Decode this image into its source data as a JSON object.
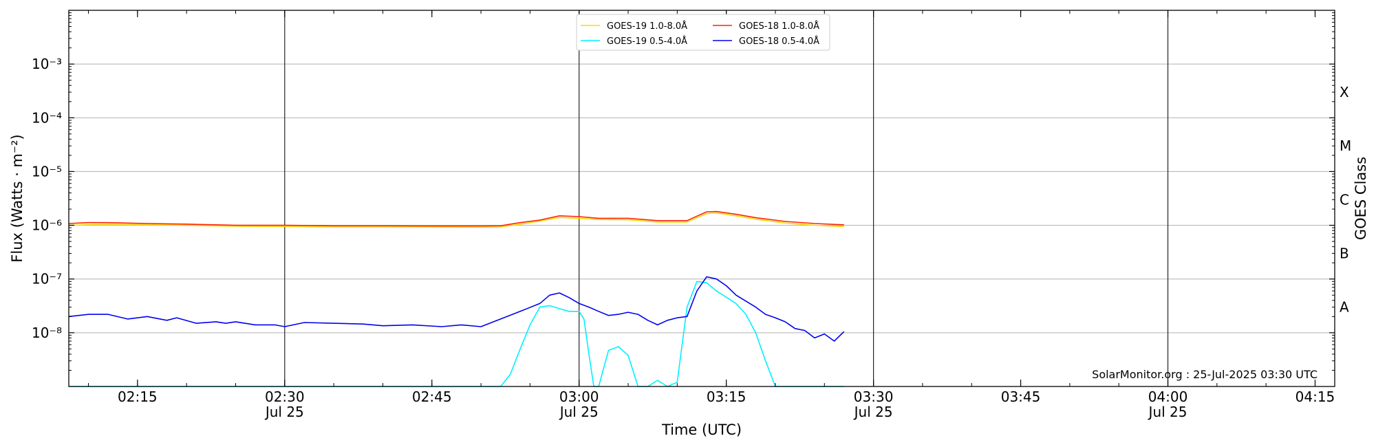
{
  "chart_data": {
    "type": "line",
    "xlabel": "Time (UTC)",
    "ylabel": "Flux (Watts · m⁻²)",
    "y2label": "GOES Class",
    "yscale": "log",
    "ylim": [
      1e-09,
      0.01
    ],
    "xlim": [
      "2025-07-25T02:08",
      "2025-07-25T04:17"
    ],
    "grid": "horizontal at decades, vertical at half-hours",
    "legend_placement": "top-center",
    "credit": "SolarMonitor.org : 25-Jul-2025 03:30 UTC",
    "y_ticks": [
      {
        "value": 1e-08,
        "label": "10⁻⁸"
      },
      {
        "value": 1e-07,
        "label": "10⁻⁷"
      },
      {
        "value": 1e-06,
        "label": "10⁻⁶"
      },
      {
        "value": 1e-05,
        "label": "10⁻⁵"
      },
      {
        "value": 0.0001,
        "label": "10⁻⁴"
      },
      {
        "value": 0.001,
        "label": "10⁻³"
      }
    ],
    "x_ticks": [
      {
        "time": "02:15",
        "label": "02:15",
        "sub": ""
      },
      {
        "time": "02:30",
        "label": "02:30",
        "sub": "Jul 25"
      },
      {
        "time": "02:45",
        "label": "02:45",
        "sub": ""
      },
      {
        "time": "03:00",
        "label": "03:00",
        "sub": "Jul 25"
      },
      {
        "time": "03:15",
        "label": "03:15",
        "sub": ""
      },
      {
        "time": "03:30",
        "label": "03:30",
        "sub": "Jul 25"
      },
      {
        "time": "03:45",
        "label": "03:45",
        "sub": ""
      },
      {
        "time": "04:00",
        "label": "04:00",
        "sub": "Jul 25"
      },
      {
        "time": "04:15",
        "label": "04:15",
        "sub": ""
      }
    ],
    "goes_classes": [
      {
        "label": "A",
        "at": 3e-08
      },
      {
        "label": "B",
        "at": 3e-07
      },
      {
        "label": "C",
        "at": 3e-06
      },
      {
        "label": "M",
        "at": 3e-05
      },
      {
        "label": "X",
        "at": 0.0003
      }
    ],
    "series": [
      {
        "name": "GOES-19 1.0-8.0Å",
        "color": "#ffd700",
        "points": [
          [
            "02:08",
            1e-06
          ],
          [
            "02:12",
            1.05e-06
          ],
          [
            "02:16",
            1.03e-06
          ],
          [
            "02:20",
            1e-06
          ],
          [
            "02:25",
            9.6e-07
          ],
          [
            "02:30",
            9.5e-07
          ],
          [
            "02:35",
            9.3e-07
          ],
          [
            "02:40",
            9.3e-07
          ],
          [
            "02:45",
            9.3e-07
          ],
          [
            "02:50",
            9.2e-07
          ],
          [
            "02:52",
            9.3e-07
          ],
          [
            "02:54",
            1.05e-06
          ],
          [
            "02:56",
            1.2e-06
          ],
          [
            "02:58",
            1.4e-06
          ],
          [
            "03:00",
            1.35e-06
          ],
          [
            "03:02",
            1.28e-06
          ],
          [
            "03:05",
            1.27e-06
          ],
          [
            "03:08",
            1.15e-06
          ],
          [
            "03:11",
            1.15e-06
          ],
          [
            "03:13",
            1.65e-06
          ],
          [
            "03:14",
            1.7e-06
          ],
          [
            "03:16",
            1.5e-06
          ],
          [
            "03:18",
            1.3e-06
          ],
          [
            "03:21",
            1.1e-06
          ],
          [
            "03:24",
            1e-06
          ],
          [
            "03:27",
            9.5e-07
          ]
        ]
      },
      {
        "name": "GOES-18 1.0-8.0Å",
        "color": "#ff2200",
        "points": [
          [
            "02:08",
            1.08e-06
          ],
          [
            "02:10",
            1.12e-06
          ],
          [
            "02:12",
            1.12e-06
          ],
          [
            "02:16",
            1.08e-06
          ],
          [
            "02:20",
            1.05e-06
          ],
          [
            "02:25",
            1e-06
          ],
          [
            "02:30",
            1e-06
          ],
          [
            "02:35",
            9.8e-07
          ],
          [
            "02:40",
            9.8e-07
          ],
          [
            "02:45",
            9.7e-07
          ],
          [
            "02:50",
            9.7e-07
          ],
          [
            "02:52",
            9.8e-07
          ],
          [
            "02:54",
            1.12e-06
          ],
          [
            "02:56",
            1.25e-06
          ],
          [
            "02:58",
            1.5e-06
          ],
          [
            "03:00",
            1.45e-06
          ],
          [
            "03:02",
            1.35e-06
          ],
          [
            "03:05",
            1.35e-06
          ],
          [
            "03:08",
            1.22e-06
          ],
          [
            "03:11",
            1.22e-06
          ],
          [
            "03:13",
            1.78e-06
          ],
          [
            "03:14",
            1.8e-06
          ],
          [
            "03:16",
            1.6e-06
          ],
          [
            "03:18",
            1.38e-06
          ],
          [
            "03:21",
            1.18e-06
          ],
          [
            "03:24",
            1.08e-06
          ],
          [
            "03:27",
            1.02e-06
          ]
        ]
      },
      {
        "name": "GOES-19 0.5-4.0Å",
        "color": "#00f0ff",
        "points": [
          [
            "02:08",
            1e-09
          ],
          [
            "02:52",
            1e-09
          ],
          [
            "02:53",
            1.7e-09
          ],
          [
            "02:54",
            5e-09
          ],
          [
            "02:55",
            1.4e-08
          ],
          [
            "02:56",
            3e-08
          ],
          [
            "02:57",
            3.2e-08
          ],
          [
            "02:58",
            2.8e-08
          ],
          [
            "02:59",
            2.5e-08
          ],
          [
            "03:00",
            2.5e-08
          ],
          [
            "03:00.5",
            1.8e-08
          ],
          [
            "03:01",
            4e-09
          ],
          [
            "03:01.5",
            1e-09
          ],
          [
            "03:02",
            1e-09
          ],
          [
            "03:03",
            4.7e-09
          ],
          [
            "03:04",
            5.5e-09
          ],
          [
            "03:05",
            3.8e-09
          ],
          [
            "03:06",
            1e-09
          ],
          [
            "03:07",
            1e-09
          ],
          [
            "03:08",
            1.3e-09
          ],
          [
            "03:09",
            1e-09
          ],
          [
            "03:10",
            1.2e-09
          ],
          [
            "03:11",
            3e-08
          ],
          [
            "03:12",
            9e-08
          ],
          [
            "03:13",
            8.5e-08
          ],
          [
            "03:14",
            6e-08
          ],
          [
            "03:16",
            3.5e-08
          ],
          [
            "03:17",
            2.2e-08
          ],
          [
            "03:18",
            1e-08
          ],
          [
            "03:19",
            3e-09
          ],
          [
            "03:20",
            1e-09
          ],
          [
            "03:27",
            1e-09
          ]
        ]
      },
      {
        "name": "GOES-18 0.5-4.0Å",
        "color": "#0000ee",
        "points": [
          [
            "02:08",
            2e-08
          ],
          [
            "02:10",
            2.2e-08
          ],
          [
            "02:12",
            2.2e-08
          ],
          [
            "02:14",
            1.8e-08
          ],
          [
            "02:16",
            2e-08
          ],
          [
            "02:18",
            1.7e-08
          ],
          [
            "02:19",
            1.9e-08
          ],
          [
            "02:21",
            1.5e-08
          ],
          [
            "02:23",
            1.6e-08
          ],
          [
            "02:24",
            1.5e-08
          ],
          [
            "02:25",
            1.6e-08
          ],
          [
            "02:27",
            1.4e-08
          ],
          [
            "02:29",
            1.4e-08
          ],
          [
            "02:30",
            1.3e-08
          ],
          [
            "02:32",
            1.55e-08
          ],
          [
            "02:35",
            1.5e-08
          ],
          [
            "02:38",
            1.45e-08
          ],
          [
            "02:40",
            1.35e-08
          ],
          [
            "02:43",
            1.4e-08
          ],
          [
            "02:46",
            1.3e-08
          ],
          [
            "02:48",
            1.4e-08
          ],
          [
            "02:50",
            1.3e-08
          ],
          [
            "02:52",
            1.8e-08
          ],
          [
            "02:54",
            2.5e-08
          ],
          [
            "02:56",
            3.5e-08
          ],
          [
            "02:57",
            5e-08
          ],
          [
            "02:58",
            5.5e-08
          ],
          [
            "02:59",
            4.5e-08
          ],
          [
            "03:00",
            3.5e-08
          ],
          [
            "03:01",
            3e-08
          ],
          [
            "03:02",
            2.5e-08
          ],
          [
            "03:03",
            2.1e-08
          ],
          [
            "03:04",
            2.2e-08
          ],
          [
            "03:05",
            2.4e-08
          ],
          [
            "03:06",
            2.2e-08
          ],
          [
            "03:07",
            1.7e-08
          ],
          [
            "03:08",
            1.4e-08
          ],
          [
            "03:09",
            1.7e-08
          ],
          [
            "03:10",
            1.9e-08
          ],
          [
            "03:11",
            2e-08
          ],
          [
            "03:12",
            6e-08
          ],
          [
            "03:13",
            1.1e-07
          ],
          [
            "03:14",
            1e-07
          ],
          [
            "03:15",
            7.5e-08
          ],
          [
            "03:16",
            5e-08
          ],
          [
            "03:18",
            3e-08
          ],
          [
            "03:19",
            2.2e-08
          ],
          [
            "03:20",
            1.9e-08
          ],
          [
            "03:21",
            1.6e-08
          ],
          [
            "03:22",
            1.2e-08
          ],
          [
            "03:23",
            1.1e-08
          ],
          [
            "03:24",
            8e-09
          ],
          [
            "03:25",
            9.5e-09
          ],
          [
            "03:26",
            7e-09
          ],
          [
            "03:27",
            1.05e-08
          ]
        ]
      }
    ]
  }
}
